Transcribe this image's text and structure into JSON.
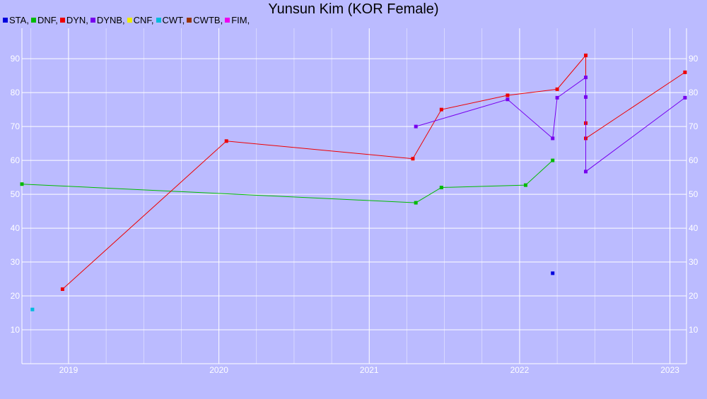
{
  "chart_data": {
    "type": "line",
    "title": "Yunsun Kim (KOR Female)",
    "xlabel": "",
    "ylabel": "",
    "xlim": [
      2018.69,
      2023.11
    ],
    "ylim": [
      0,
      99
    ],
    "x_ticks": [
      2019,
      2020,
      2021,
      2022,
      2023
    ],
    "y_ticks": [
      10,
      20,
      30,
      40,
      50,
      60,
      70,
      80,
      90
    ],
    "grid": true,
    "legend": [
      {
        "name": "STA",
        "color": "#0000dd"
      },
      {
        "name": "DNF",
        "color": "#00bb00"
      },
      {
        "name": "DYN",
        "color": "#ee0000"
      },
      {
        "name": "DYNB",
        "color": "#7700ee"
      },
      {
        "name": "CNF",
        "color": "#eeee00"
      },
      {
        "name": "CWT",
        "color": "#00bbdd"
      },
      {
        "name": "CWTB",
        "color": "#993300"
      },
      {
        "name": "FIM",
        "color": "#ee00ee"
      }
    ],
    "series": [
      {
        "name": "STA",
        "color": "#0000dd",
        "x": [
          2022.22
        ],
        "y": [
          26.7
        ]
      },
      {
        "name": "DNF",
        "color": "#00bb00",
        "x": [
          2018.69,
          2021.31,
          2021.48,
          2022.04,
          2022.22
        ],
        "y": [
          53.0,
          47.5,
          52.0,
          52.7,
          60.0
        ]
      },
      {
        "name": "DYN",
        "color": "#ee0000",
        "x": [
          2018.96,
          2020.05,
          2021.29,
          2021.48,
          2021.92,
          2022.25,
          2022.44,
          2022.44,
          2022.44,
          2023.1
        ],
        "y": [
          22.0,
          65.7,
          60.5,
          75.0,
          79.2,
          81.0,
          91.0,
          71.0,
          66.5,
          86.0
        ]
      },
      {
        "name": "DYNB",
        "color": "#7700ee",
        "x": [
          2021.31,
          2021.92,
          2022.22,
          2022.25,
          2022.44,
          2022.44,
          2022.44,
          2023.1
        ],
        "y": [
          70.0,
          78.0,
          66.5,
          78.5,
          84.5,
          78.7,
          56.7,
          78.5
        ]
      },
      {
        "name": "CWT",
        "color": "#00bbdd",
        "x": [
          2018.76
        ],
        "y": [
          16.0
        ]
      }
    ]
  }
}
